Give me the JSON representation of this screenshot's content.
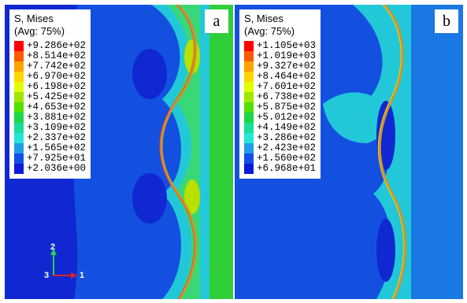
{
  "panels": [
    {
      "id": "a",
      "label": "a",
      "legend": {
        "title_line1": "S, Mises",
        "title_line2": "(Avg: 75%)",
        "values": [
          "+9.286e+02",
          "+8.514e+02",
          "+7.742e+02",
          "+6.970e+02",
          "+6.198e+02",
          "+5.425e+02",
          "+4.653e+02",
          "+3.881e+02",
          "+3.109e+02",
          "+2.337e+02",
          "+1.565e+02",
          "+7.925e+01",
          "+2.036e+00"
        ]
      },
      "triad": {
        "axis_y": "2",
        "axis_x": "1",
        "axis_z": "3"
      }
    },
    {
      "id": "b",
      "label": "b",
      "legend": {
        "title_line1": "S, Mises",
        "title_line2": "(Avg: 75%)",
        "values": [
          "+1.105e+03",
          "+1.019e+03",
          "+9.327e+02",
          "+8.464e+02",
          "+7.601e+02",
          "+6.738e+02",
          "+5.875e+02",
          "+5.012e+02",
          "+4.149e+02",
          "+3.286e+02",
          "+2.423e+02",
          "+1.560e+02",
          "+6.968e+01"
        ]
      }
    }
  ],
  "colors": {
    "legend_scale": [
      "#ff0000",
      "#ff5a00",
      "#ffa200",
      "#ffd500",
      "#e1ff00",
      "#9ee700",
      "#52e000",
      "#1ad649",
      "#19dd98",
      "#23e6d7",
      "#1f9de6",
      "#124fe6",
      "#0c1bd8"
    ],
    "field_deep": "#0f28d2",
    "field_blue": "#1450e0",
    "field_mid": "#1a78e4",
    "field_cyan": "#22c8d8",
    "field_green_light": "#38d878",
    "field_green": "#2fcf3a",
    "field_yellow": "#b8e000"
  }
}
